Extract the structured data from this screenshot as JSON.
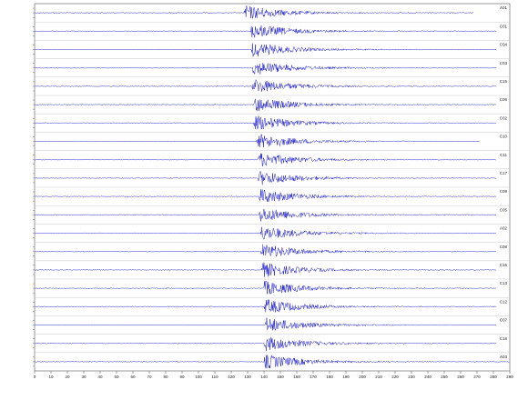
{
  "chart_data": {
    "type": "seismogram",
    "color": "#1a1acc",
    "xlim": [
      0,
      290
    ],
    "xticks": [
      0,
      10,
      20,
      30,
      40,
      50,
      60,
      70,
      80,
      90,
      100,
      110,
      120,
      130,
      140,
      150,
      160,
      170,
      180,
      190,
      200,
      210,
      220,
      230,
      240,
      250,
      260,
      270,
      280,
      290
    ],
    "series": [
      {
        "name": "A01",
        "onset": 127.8,
        "end": 267.8
      },
      {
        "name": "C01",
        "onset": 131.7,
        "end": 281.7
      },
      {
        "name": "C04",
        "onset": 132.2,
        "end": 281.7
      },
      {
        "name": "C03",
        "onset": 132.8,
        "end": 281.7
      },
      {
        "name": "C15",
        "onset": 132.8,
        "end": 281.7
      },
      {
        "name": "C06",
        "onset": 133.9,
        "end": 281.7
      },
      {
        "name": "C02",
        "onset": 133.9,
        "end": 281.7
      },
      {
        "name": "C10",
        "onset": 135.6,
        "end": 272.0
      },
      {
        "name": "C11",
        "onset": 136.1,
        "end": 281.7
      },
      {
        "name": "C17",
        "onset": 136.1,
        "end": 281.7
      },
      {
        "name": "C09",
        "onset": 136.7,
        "end": 281.7
      },
      {
        "name": "C05",
        "onset": 136.7,
        "end": 281.7
      },
      {
        "name": "A02",
        "onset": 137.8,
        "end": 281.7
      },
      {
        "name": "C08",
        "onset": 138.3,
        "end": 281.7
      },
      {
        "name": "C16",
        "onset": 138.3,
        "end": 281.7
      },
      {
        "name": "C13",
        "onset": 139.4,
        "end": 281.7
      },
      {
        "name": "C12",
        "onset": 140.0,
        "end": 281.7
      },
      {
        "name": "C07",
        "onset": 140.6,
        "end": 281.7
      },
      {
        "name": "C18",
        "onset": 140.0,
        "end": 281.7
      },
      {
        "name": "A03",
        "onset": 140.0,
        "end": 290
      }
    ]
  }
}
